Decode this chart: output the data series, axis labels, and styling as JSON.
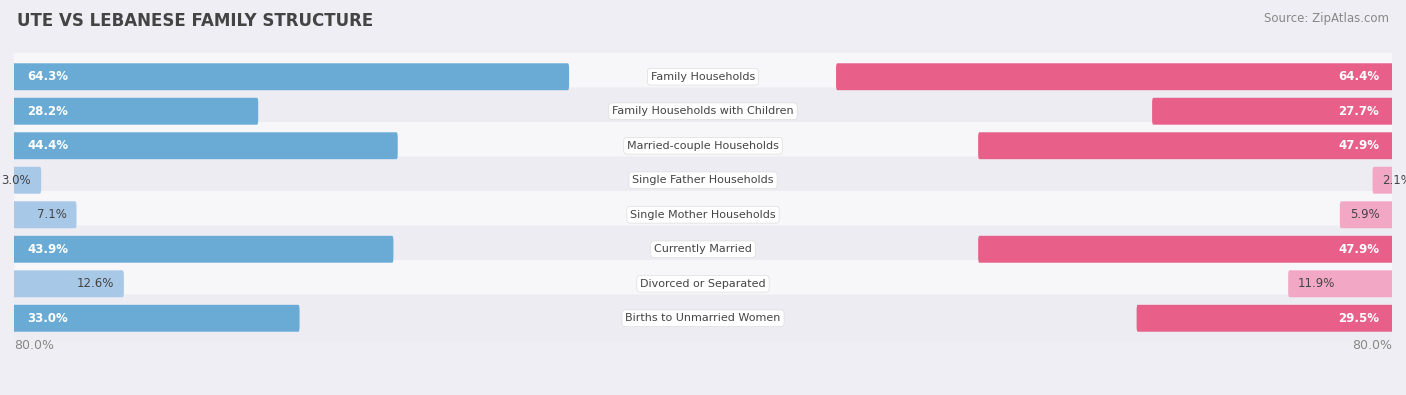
{
  "title": "UTE VS LEBANESE FAMILY STRUCTURE",
  "source": "Source: ZipAtlas.com",
  "categories": [
    "Family Households",
    "Family Households with Children",
    "Married-couple Households",
    "Single Father Households",
    "Single Mother Households",
    "Currently Married",
    "Divorced or Separated",
    "Births to Unmarried Women"
  ],
  "ute_values": [
    64.3,
    28.2,
    44.4,
    3.0,
    7.1,
    43.9,
    12.6,
    33.0
  ],
  "lebanese_values": [
    64.4,
    27.7,
    47.9,
    2.1,
    5.9,
    47.9,
    11.9,
    29.5
  ],
  "x_max": 80.0,
  "ute_color_strong": "#6aabd6",
  "ute_color_light": "#a8c8e8",
  "lebanese_color_strong": "#e8608a",
  "lebanese_color_light": "#f2a8c4",
  "bg_color": "#eeeef4",
  "row_bg_odd": "#f7f7fa",
  "row_bg_even": "#ececf2",
  "title_color": "#444444",
  "source_color": "#888888",
  "label_color": "#444444",
  "axis_label_color": "#888888",
  "legend_ute_color": "#6aabd6",
  "legend_leb_color": "#e8608a",
  "strong_threshold": 20.0,
  "value_label_fontsize": 8.5,
  "cat_label_fontsize": 8.0,
  "title_fontsize": 12.0,
  "source_fontsize": 8.5,
  "legend_fontsize": 9.0
}
